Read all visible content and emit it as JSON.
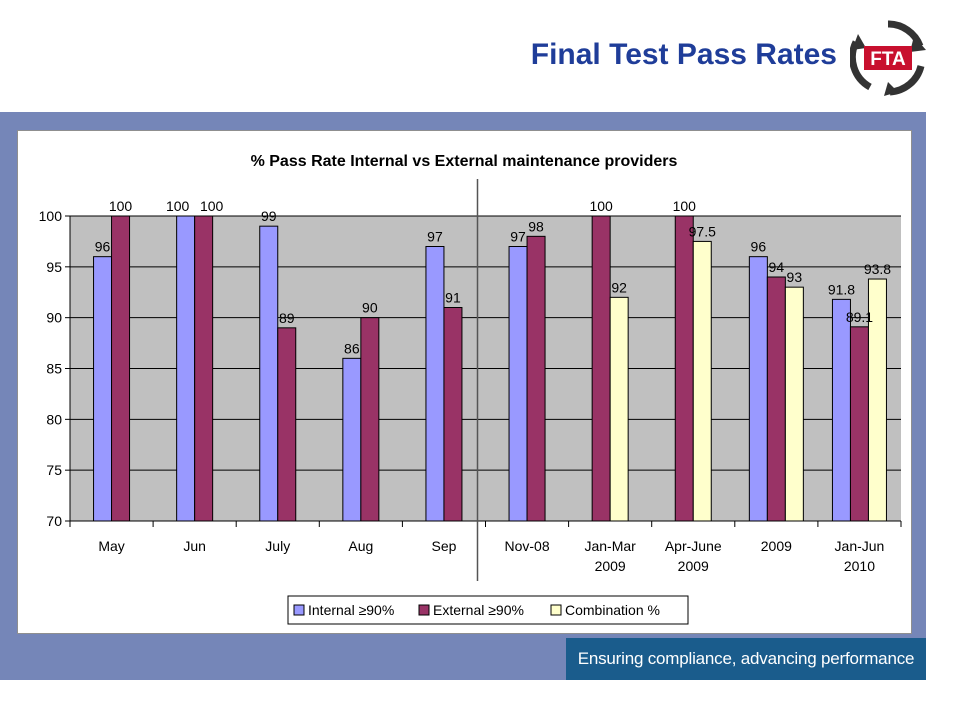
{
  "header": {
    "title": "Final Test Pass Rates",
    "logo_text": "FTA"
  },
  "footer": {
    "tagline": "Ensuring compliance, advancing performance"
  },
  "colors": {
    "band": "#7586b8",
    "tagline_bg": "#1a5c8c",
    "plot_bg": "#c0c0c0",
    "internal": "#9999ff",
    "external": "#993366",
    "combination": "#ffffcc"
  },
  "chart_data": {
    "type": "bar",
    "title": "% Pass Rate Internal vs External maintenance providers",
    "xlabel": "",
    "ylabel": "",
    "ylim": [
      70,
      100
    ],
    "yticks": [
      "70",
      "75",
      "80",
      "85",
      "90",
      "95",
      "100"
    ],
    "grid": true,
    "legend": "bottom",
    "categories": [
      [
        "May"
      ],
      [
        "Jun"
      ],
      [
        "July"
      ],
      [
        "Aug"
      ],
      [
        "Sep"
      ],
      [
        "Nov-08"
      ],
      [
        "Jan-Mar",
        "2009"
      ],
      [
        "Apr-June",
        "2009"
      ],
      [
        "2009"
      ],
      [
        "Jan-Jun",
        "2010"
      ]
    ],
    "series": [
      {
        "name": "Internal ≥90%",
        "color": "#9999ff",
        "values": [
          96,
          100,
          99,
          86,
          97,
          97,
          null,
          null,
          96,
          91.8
        ]
      },
      {
        "name": "External ≥90%",
        "color": "#993366",
        "values": [
          100,
          100,
          89,
          90,
          91,
          98,
          100,
          100,
          94,
          89.1
        ]
      },
      {
        "name": "Combination %",
        "color": "#ffffcc",
        "values": [
          null,
          null,
          null,
          null,
          null,
          null,
          92,
          97.5,
          93,
          93.8
        ]
      }
    ]
  }
}
